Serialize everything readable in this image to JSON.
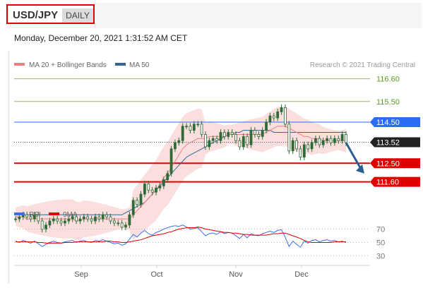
{
  "header": {
    "pair": "USD/JPY",
    "timeframe": "DAILY",
    "timestamp": "Monday, December 20, 2021 1:31:52 AM CET"
  },
  "legend": {
    "ma20": "MA 20 + Bollinger Bands",
    "ma50": "MA 50",
    "credit": "Research © 2021 Trading Central",
    "rsi": "RSI",
    "ma9": "9MA"
  },
  "colors": {
    "ma20": "#f08080",
    "ma50": "#336699",
    "bollinger_fill": "#fbdede",
    "resistance": "#8bc34a",
    "pivot": "#2a6ef5",
    "support": "#e00000",
    "rsi": "#3d6fe0",
    "rsi_ma": "#e00000",
    "current": "#222222"
  },
  "chart_data": [
    {
      "type": "candlestick",
      "x_labels": [
        "Sep",
        "Oct",
        "Nov",
        "Dec"
      ],
      "ylim": [
        110.9,
        117.0
      ],
      "levels": [
        {
          "value": 116.6,
          "label": "116.60",
          "kind": "resistance"
        },
        {
          "value": 115.5,
          "label": "115.50",
          "kind": "resistance"
        },
        {
          "value": 114.5,
          "label": "114.50",
          "kind": "pivot"
        },
        {
          "value": 113.52,
          "label": "113.52",
          "kind": "current"
        },
        {
          "value": 112.5,
          "label": "112.50",
          "kind": "support"
        },
        {
          "value": 111.6,
          "label": "111.60",
          "kind": "support"
        }
      ],
      "close": [
        109.8,
        109.9,
        110.0,
        109.9,
        109.8,
        110.0,
        109.7,
        109.3,
        109.5,
        109.7,
        109.8,
        109.7,
        109.6,
        109.7,
        109.8,
        109.9,
        109.7,
        109.8,
        109.9,
        109.8,
        109.7,
        109.9,
        109.8,
        110.0,
        109.9,
        109.7,
        109.6,
        109.6,
        109.4,
        109.5,
        110.0,
        110.7,
        110.5,
        111.0,
        111.5,
        111.2,
        111.1,
        111.3,
        111.4,
        111.7,
        112.0,
        113.2,
        113.5,
        113.6,
        114.3,
        114.3,
        114.1,
        114.4,
        114.4,
        113.9,
        113.3,
        113.6,
        113.7,
        113.6,
        114.0,
        113.8,
        114.0,
        113.9,
        113.6,
        113.3,
        113.8,
        113.4,
        114.1,
        113.9,
        113.8,
        114.1,
        114.5,
        114.8,
        114.7,
        115.0,
        115.2,
        114.4,
        113.1,
        113.6,
        113.2,
        112.8,
        113.4,
        113.2,
        113.5,
        113.7,
        113.4,
        113.6,
        113.7,
        113.5,
        113.7,
        113.6,
        113.9,
        113.5
      ],
      "ma20": [
        109.9,
        109.9,
        109.9,
        109.8,
        109.8,
        109.8,
        109.8,
        109.8,
        109.8,
        109.8,
        109.8,
        109.8,
        109.8,
        109.8,
        109.8,
        109.8,
        109.7,
        109.7,
        109.8,
        109.8,
        109.8,
        109.8,
        109.8,
        109.8,
        109.8,
        109.8,
        109.8,
        109.8,
        109.8,
        109.8,
        109.8,
        110.0,
        110.2,
        110.4,
        110.6,
        110.8,
        111.0,
        111.2,
        111.5,
        111.8,
        112.0,
        112.3,
        112.6,
        112.9,
        113.2,
        113.4,
        113.5,
        113.6,
        113.7,
        113.7,
        113.7,
        113.8,
        113.8,
        113.8,
        113.8,
        113.8,
        113.9,
        113.9,
        113.9,
        113.9,
        113.9,
        113.9,
        113.9,
        113.9,
        113.9,
        113.9,
        114.0,
        114.1,
        114.2,
        114.3,
        114.3,
        114.3,
        114.2,
        114.1,
        114.0,
        113.9,
        113.8,
        113.8,
        113.7,
        113.7,
        113.7,
        113.6,
        113.6,
        113.6,
        113.6,
        113.6,
        113.6,
        113.6
      ],
      "ma50": [
        110.0,
        110.0,
        110.0,
        110.0,
        110.0,
        110.0,
        110.0,
        110.0,
        110.0,
        110.0,
        110.0,
        110.0,
        110.0,
        110.0,
        110.0,
        110.0,
        110.0,
        110.0,
        110.0,
        110.0,
        110.0,
        110.0,
        110.0,
        110.0,
        110.0,
        110.0,
        110.0,
        110.0,
        110.0,
        110.1,
        110.2,
        110.3,
        110.4,
        110.5,
        110.6,
        110.8,
        111.0,
        111.2,
        111.4,
        111.6,
        111.8,
        112.0,
        112.2,
        112.4,
        112.6,
        112.8,
        112.9,
        113.0,
        113.1,
        113.2,
        113.3,
        113.4,
        113.5,
        113.6,
        113.7,
        113.8,
        113.9,
        113.9,
        114.0,
        114.0,
        114.1,
        114.1,
        114.1,
        114.1,
        114.1,
        114.1,
        114.1,
        114.1,
        114.0,
        114.0,
        114.0,
        114.0,
        114.0,
        114.0,
        114.0,
        114.0,
        114.0,
        114.0,
        114.0,
        114.0,
        114.0,
        114.0,
        114.0,
        114.0,
        114.0,
        114.0,
        114.0,
        114.0
      ]
    },
    {
      "type": "line",
      "name": "RSI",
      "ylim": [
        20,
        80
      ],
      "y_ticks": [
        70,
        50,
        30
      ],
      "rsi": [
        52,
        50,
        53,
        51,
        49,
        52,
        48,
        44,
        47,
        50,
        52,
        50,
        49,
        51,
        52,
        53,
        50,
        52,
        53,
        51,
        50,
        53,
        52,
        54,
        52,
        50,
        48,
        49,
        46,
        48,
        55,
        62,
        58,
        64,
        68,
        63,
        61,
        65,
        67,
        70,
        72,
        74,
        75,
        74,
        76,
        73,
        70,
        71,
        72,
        66,
        60,
        63,
        64,
        62,
        66,
        63,
        65,
        64,
        60,
        56,
        62,
        57,
        63,
        61,
        60,
        63,
        65,
        67,
        65,
        68,
        69,
        58,
        44,
        52,
        47,
        43,
        52,
        49,
        53,
        54,
        51,
        53,
        54,
        52,
        53,
        51,
        52,
        50
      ],
      "ma9": [
        51,
        51,
        51,
        51,
        51,
        51,
        50,
        50,
        49,
        49,
        49,
        49,
        49,
        50,
        50,
        50,
        51,
        51,
        51,
        51,
        51,
        51,
        51,
        51,
        52,
        52,
        51,
        51,
        50,
        50,
        51,
        52,
        53,
        54,
        56,
        58,
        60,
        61,
        62,
        63,
        65,
        66,
        68,
        70,
        71,
        72,
        72,
        72,
        73,
        72,
        70,
        69,
        68,
        67,
        66,
        65,
        65,
        64,
        64,
        63,
        62,
        62,
        61,
        61,
        61,
        61,
        61,
        62,
        63,
        63,
        64,
        64,
        62,
        60,
        58,
        56,
        53,
        51,
        50,
        50,
        50,
        50,
        50,
        50,
        51,
        51,
        51,
        51
      ]
    }
  ]
}
